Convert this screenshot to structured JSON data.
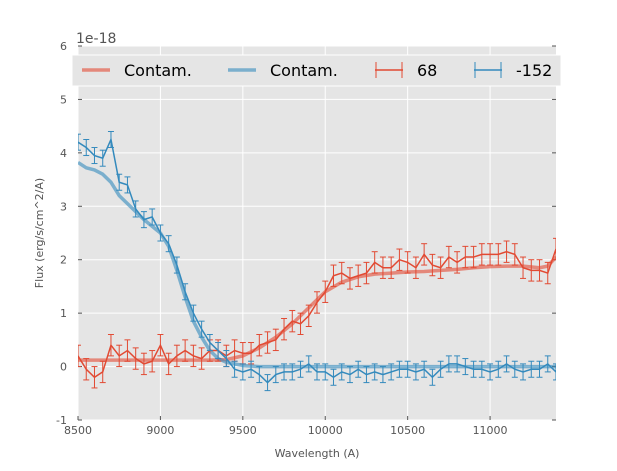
{
  "chart_data": {
    "type": "line",
    "title": "",
    "xlabel": "Wavelength (A)",
    "ylabel": "Flux (erg/s/cm^2/A)",
    "y_scale_label": "1e-18",
    "xlim": [
      8500,
      11400
    ],
    "ylim": [
      -1,
      6
    ],
    "xticks": [
      8500,
      9000,
      9500,
      10000,
      10500,
      11000
    ],
    "yticks": [
      -1,
      0,
      1,
      2,
      3,
      4,
      5,
      6
    ],
    "grid": true,
    "legend_placement": "top",
    "colors": {
      "red": "#E24A33",
      "blue": "#348ABD",
      "background": "#E5E5E5"
    },
    "series": [
      {
        "name": "Contam.",
        "kind": "model",
        "color": "#E24A33",
        "x": [
          8500,
          8600,
          8700,
          8800,
          8900,
          9000,
          9100,
          9200,
          9300,
          9400,
          9500,
          9600,
          9700,
          9800,
          9900,
          10000,
          10100,
          10200,
          10300,
          10400,
          10500,
          10600,
          10700,
          10800,
          10900,
          11000,
          11100,
          11200,
          11300,
          11350,
          11400
        ],
        "y": [
          0.12,
          0.12,
          0.12,
          0.12,
          0.12,
          0.12,
          0.12,
          0.12,
          0.12,
          0.13,
          0.2,
          0.35,
          0.55,
          0.8,
          1.1,
          1.4,
          1.58,
          1.68,
          1.73,
          1.75,
          1.77,
          1.78,
          1.8,
          1.82,
          1.85,
          1.87,
          1.88,
          1.88,
          1.85,
          1.88,
          2.05
        ]
      },
      {
        "name": "Contam.",
        "kind": "model",
        "color": "#348ABD",
        "x": [
          8500,
          8550,
          8600,
          8650,
          8700,
          8750,
          8800,
          8900,
          9000,
          9050,
          9100,
          9150,
          9200,
          9250,
          9300,
          9350,
          9400,
          9500,
          9600,
          10000,
          10500,
          11000,
          11400
        ],
        "y": [
          3.82,
          3.72,
          3.68,
          3.6,
          3.45,
          3.2,
          3.05,
          2.75,
          2.5,
          2.25,
          1.8,
          1.3,
          0.85,
          0.55,
          0.3,
          0.15,
          0.08,
          0.02,
          0.0,
          0.0,
          0.0,
          0.0,
          0.0
        ]
      },
      {
        "name": "68",
        "kind": "errorbar",
        "color": "#E24A33",
        "yerr": 0.2,
        "x": [
          8500,
          8550,
          8600,
          8650,
          8700,
          8750,
          8800,
          8850,
          8900,
          8950,
          9000,
          9050,
          9100,
          9150,
          9200,
          9250,
          9300,
          9350,
          9400,
          9450,
          9500,
          9550,
          9600,
          9650,
          9700,
          9750,
          9800,
          9850,
          9900,
          9950,
          10000,
          10050,
          10100,
          10150,
          10200,
          10250,
          10300,
          10350,
          10400,
          10450,
          10500,
          10550,
          10600,
          10650,
          10700,
          10750,
          10800,
          10850,
          10900,
          10950,
          11000,
          11050,
          11100,
          11150,
          11200,
          11250,
          11300,
          11350,
          11400
        ],
        "y": [
          0.2,
          -0.05,
          -0.2,
          -0.1,
          0.4,
          0.2,
          0.3,
          0.15,
          0.05,
          0.1,
          0.4,
          0.05,
          0.2,
          0.3,
          0.2,
          0.15,
          0.3,
          0.3,
          0.2,
          0.3,
          0.25,
          0.25,
          0.4,
          0.45,
          0.5,
          0.7,
          0.85,
          0.8,
          0.95,
          1.2,
          1.4,
          1.7,
          1.75,
          1.65,
          1.7,
          1.75,
          1.95,
          1.85,
          1.85,
          2.0,
          1.95,
          1.85,
          2.1,
          1.9,
          1.85,
          2.05,
          1.95,
          2.05,
          2.05,
          2.1,
          2.1,
          2.1,
          2.15,
          2.1,
          1.85,
          1.8,
          1.8,
          1.75,
          2.2
        ]
      },
      {
        "name": "-152",
        "kind": "errorbar",
        "color": "#348ABD",
        "yerr": 0.15,
        "x": [
          8500,
          8550,
          8600,
          8650,
          8700,
          8750,
          8800,
          8850,
          8900,
          8950,
          9000,
          9050,
          9100,
          9150,
          9200,
          9250,
          9300,
          9350,
          9400,
          9450,
          9500,
          9550,
          9600,
          9650,
          9700,
          9750,
          9800,
          9850,
          9900,
          9950,
          10000,
          10050,
          10100,
          10150,
          10200,
          10250,
          10300,
          10350,
          10400,
          10450,
          10500,
          10550,
          10600,
          10650,
          10700,
          10750,
          10800,
          10850,
          10900,
          10950,
          11000,
          11050,
          11100,
          11150,
          11200,
          11250,
          11300,
          11350,
          11400
        ],
        "y": [
          4.2,
          4.1,
          3.95,
          3.9,
          4.25,
          3.45,
          3.4,
          2.95,
          2.75,
          2.8,
          2.5,
          2.3,
          1.9,
          1.4,
          1.0,
          0.7,
          0.45,
          0.3,
          0.15,
          -0.05,
          -0.1,
          -0.05,
          -0.15,
          -0.3,
          -0.15,
          -0.1,
          -0.1,
          -0.05,
          0.05,
          -0.1,
          -0.1,
          -0.2,
          -0.1,
          -0.15,
          -0.05,
          -0.15,
          -0.1,
          -0.15,
          -0.1,
          -0.05,
          -0.05,
          -0.1,
          -0.05,
          -0.2,
          -0.05,
          0.05,
          0.05,
          0.0,
          -0.05,
          -0.05,
          -0.1,
          -0.05,
          0.05,
          -0.05,
          -0.1,
          -0.05,
          -0.05,
          0.05,
          -0.1
        ]
      }
    ]
  }
}
